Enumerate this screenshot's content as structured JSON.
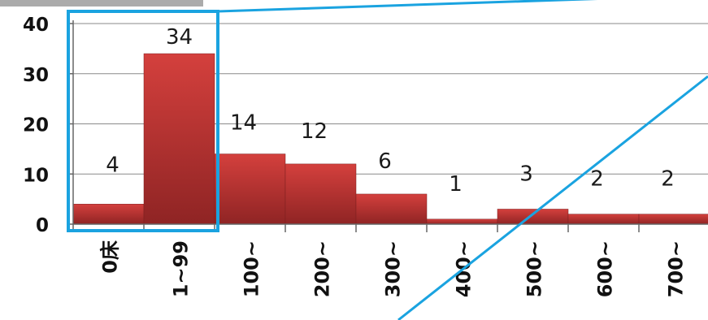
{
  "chart_data": {
    "type": "bar",
    "categories": [
      "0床",
      "1~99",
      "100~",
      "200~",
      "300~",
      "400~",
      "500~",
      "600~",
      "700~"
    ],
    "values": [
      4,
      34,
      14,
      12,
      6,
      1,
      3,
      2,
      2
    ],
    "data_labels": [
      "4",
      "34",
      "14",
      "12",
      "6",
      "1",
      "3",
      "2",
      "2"
    ],
    "y_ticks": [
      "0",
      "10",
      "20",
      "30",
      "40"
    ],
    "ylim": [
      0,
      40
    ],
    "grid": true,
    "title": "",
    "xlabel": "",
    "ylabel": "",
    "bar_color": "#b83232",
    "highlight_color": "#1aa3e0",
    "highlighted_categories": [
      "0床",
      "1~99"
    ]
  }
}
